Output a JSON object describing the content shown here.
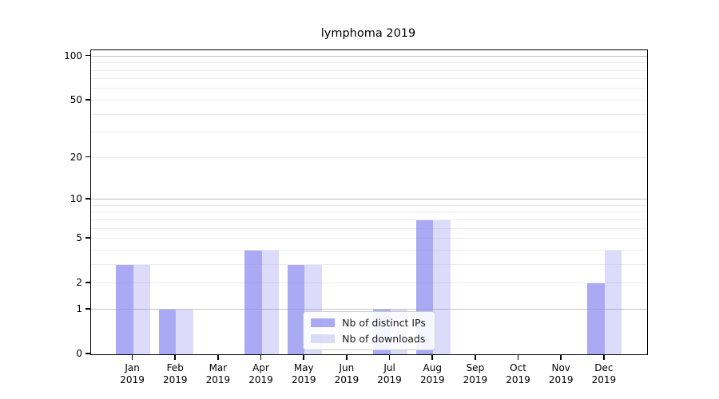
{
  "figure": {
    "title": "lymphoma 2019",
    "background_color": "#ffffff"
  },
  "chart_data": {
    "type": "bar",
    "title": "lymphoma 2019",
    "categories": [
      "Jan",
      "Feb",
      "Mar",
      "Apr",
      "May",
      "Jun",
      "Jul",
      "Aug",
      "Sep",
      "Oct",
      "Nov",
      "Dec"
    ],
    "x_year_label": "2019",
    "series": [
      {
        "name": "Nb of distinct IPs",
        "color": "rgba(140,140,240,0.75)",
        "color_hex": "#a9a9f4",
        "values": [
          3,
          1,
          0,
          4,
          3,
          0,
          1,
          7,
          0,
          0,
          0,
          2
        ]
      },
      {
        "name": "Nb of downloads",
        "color": "rgba(140,140,240,0.30)",
        "color_hex": "#dcdcf9",
        "values": [
          3,
          1,
          0,
          4,
          3,
          0,
          1,
          7,
          0,
          0,
          0,
          4
        ]
      }
    ],
    "yscale": "log1p",
    "ylim": [
      0,
      110
    ],
    "xlim": [
      -0.98,
      11.99
    ],
    "bar_width": 0.4,
    "y_tick_labels": [
      100,
      50,
      20,
      10,
      5,
      2,
      1,
      0
    ],
    "grid": {
      "on": true,
      "major_values": [
        1,
        10,
        100
      ],
      "minor_values": [
        2,
        3,
        4,
        5,
        6,
        7,
        8,
        9,
        20,
        30,
        40,
        50,
        60,
        70,
        80,
        90
      ],
      "major_color": "#c3c3c3",
      "minor_color": "#ececec"
    },
    "legend": {
      "position": "lower center",
      "items": [
        "Nb of distinct IPs",
        "Nb of downloads"
      ]
    }
  }
}
